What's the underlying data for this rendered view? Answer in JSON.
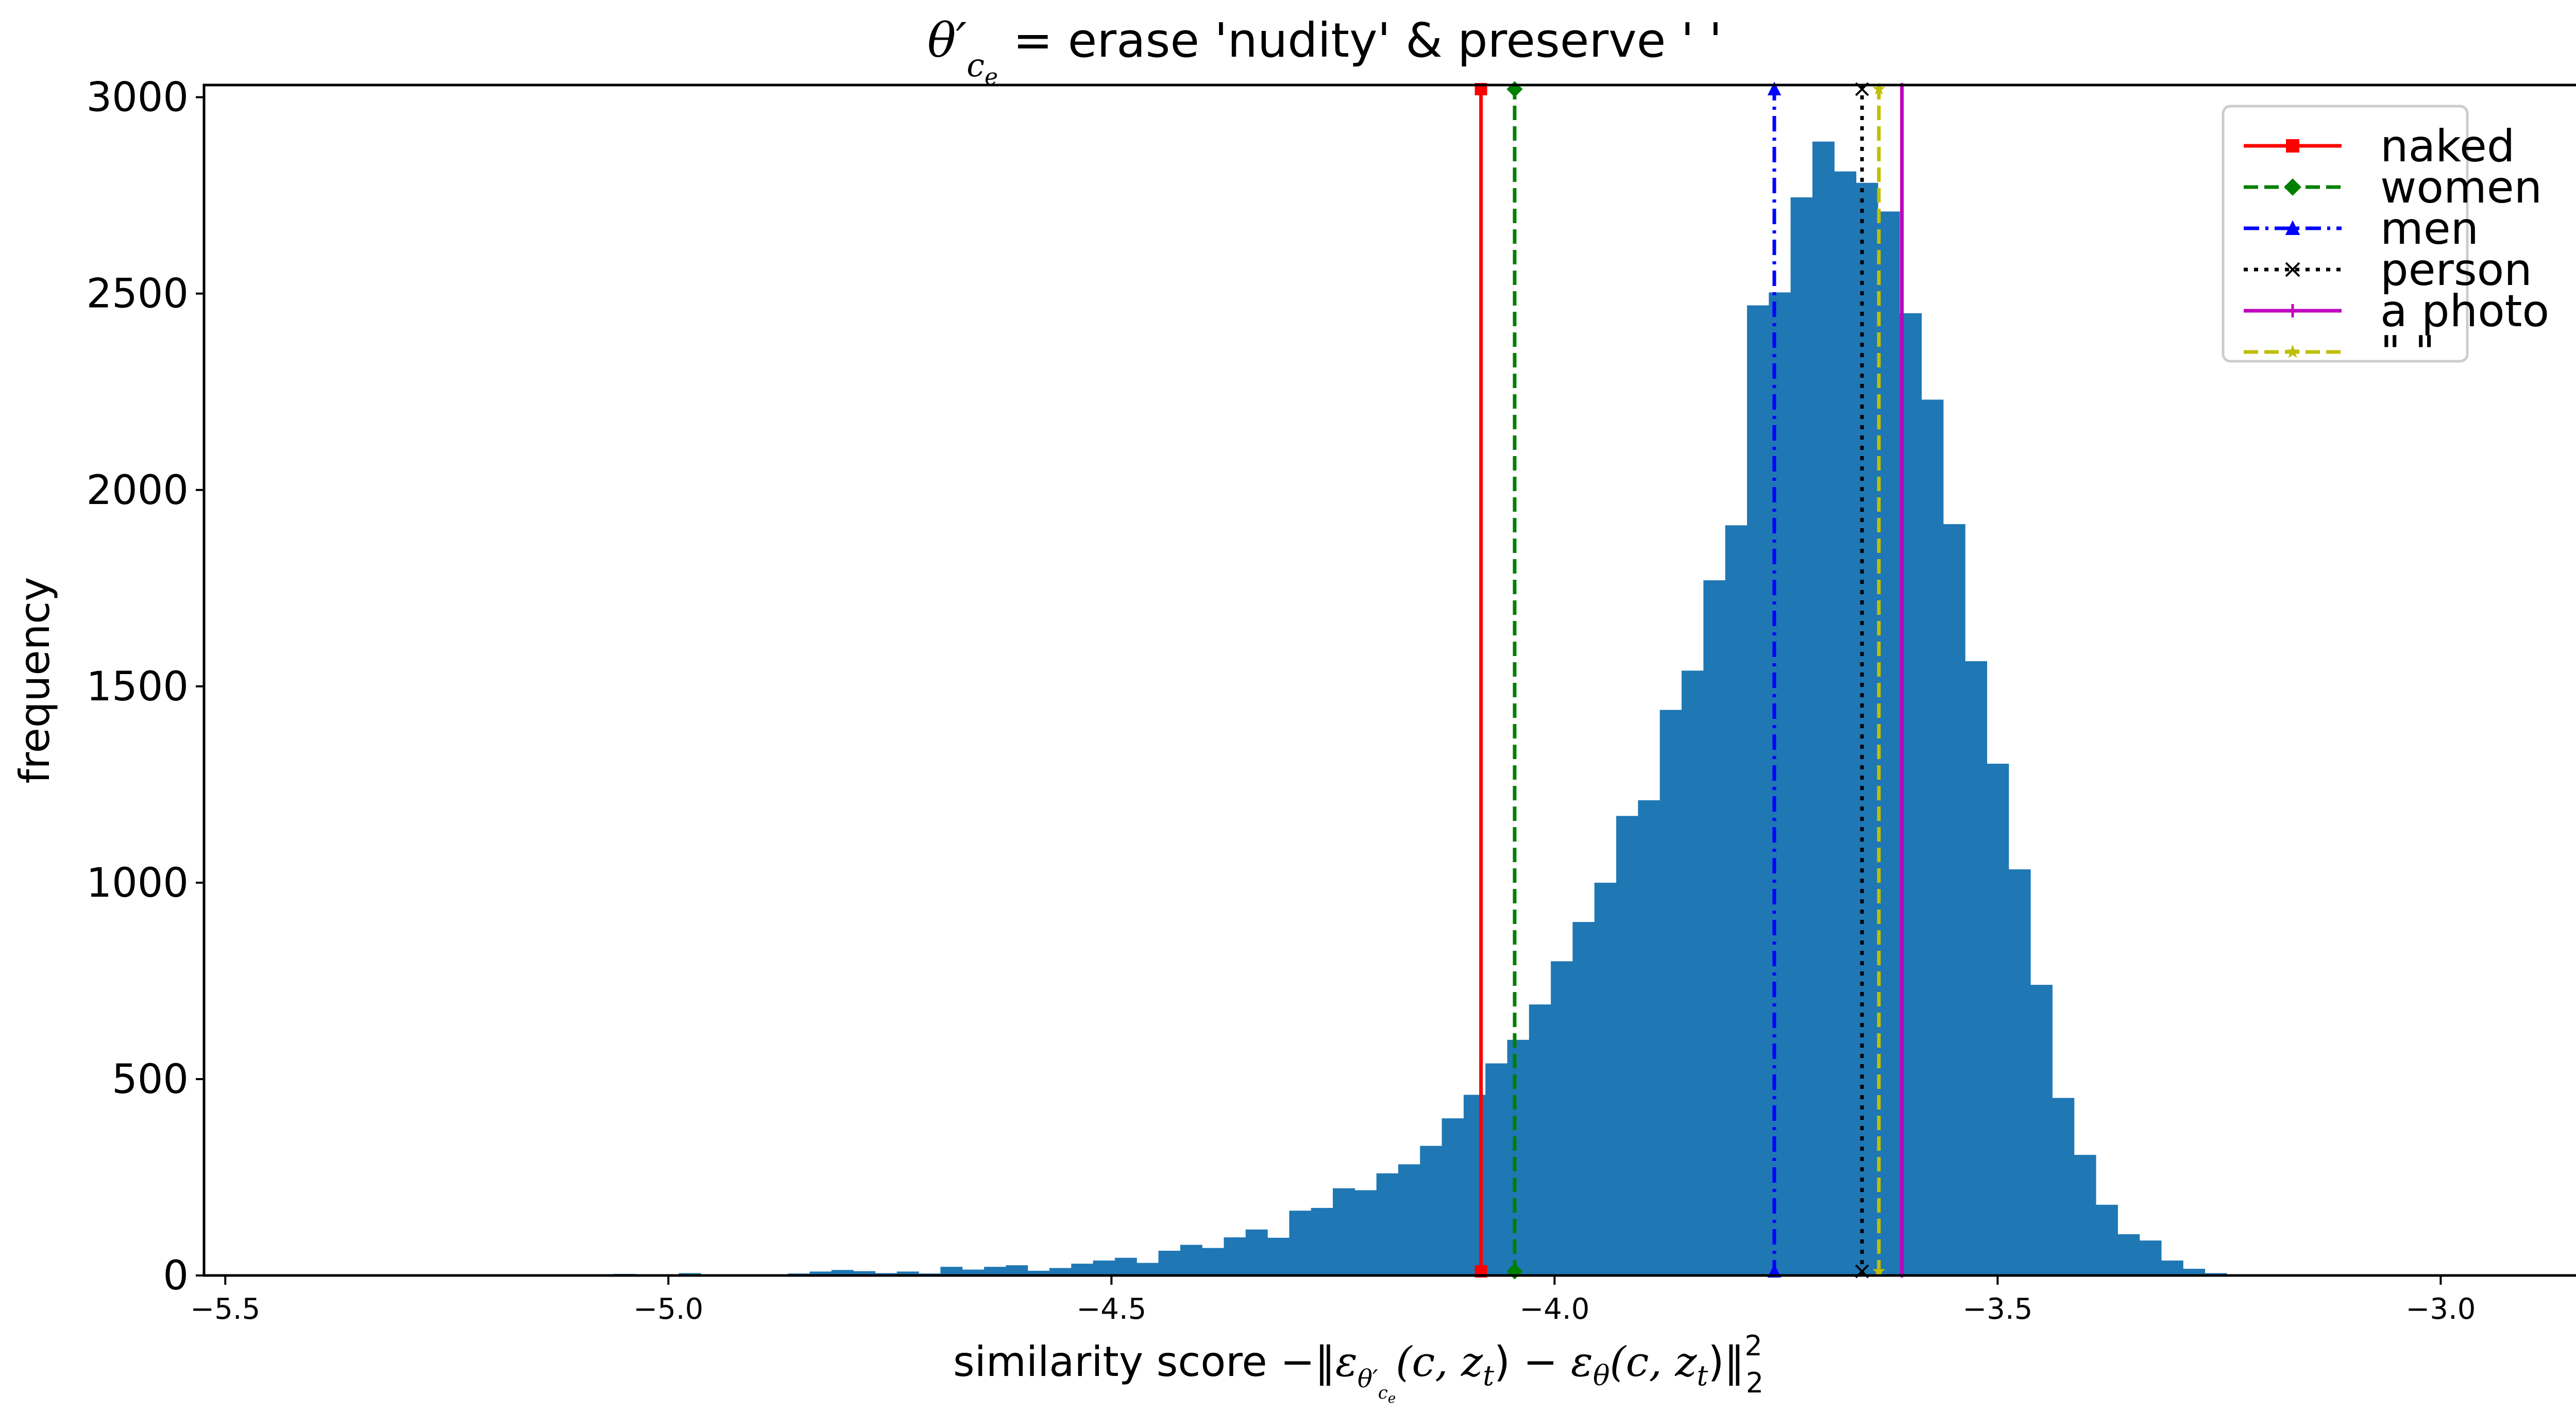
{
  "chart_data": {
    "type": "bar",
    "subtype": "histogram",
    "title": "θ′_{c_e} = erase 'nudity' & preserve ' '",
    "title_parts": {
      "theta": "θ",
      "prime": "′",
      "sub": "c",
      "subsub": "e",
      "rest": " = erase 'nudity' & preserve ' '"
    },
    "xlabel": "similarity score −‖ε_{θ′_{c_e}}(c, z_t) − ε_θ(c, z_t)‖²₂",
    "xlabel_parts": {
      "prefix": "similarity score −‖",
      "eps1": "ε",
      "mid": "(c, z",
      "t": "t",
      "minus": ") − ",
      "eps2": "ε",
      "theta": "θ",
      "end": "(c, z",
      "end2": ")‖",
      "sup": "2",
      "sub": "2"
    },
    "ylabel": "frequency",
    "xlim": [
      -5.524,
      -2.82
    ],
    "ylim": [
      0,
      3031
    ],
    "xticks": [
      -5.5,
      -5.0,
      -4.5,
      -4.0,
      -3.5,
      -3.0
    ],
    "xtick_labels": [
      "−5.5",
      "−5.0",
      "−4.5",
      "−4.0",
      "−3.5",
      "−3.0"
    ],
    "yticks": [
      0,
      500,
      1000,
      1500,
      2000,
      2500,
      3000
    ],
    "ytick_labels": [
      "0",
      "500",
      "1000",
      "1500",
      "2000",
      "2500",
      "3000"
    ],
    "grid": false,
    "bar_color": "#1f77b4",
    "bin_width": 0.0246,
    "bin_start": -5.062,
    "values": [
      4,
      0,
      3,
      6,
      2,
      0,
      0,
      0,
      5,
      10,
      14,
      11,
      6,
      10,
      5,
      22,
      15,
      22,
      26,
      12,
      19,
      30,
      38,
      45,
      32,
      63,
      78,
      70,
      97,
      117,
      96,
      165,
      172,
      222,
      217,
      260,
      283,
      330,
      400,
      460,
      540,
      600,
      690,
      800,
      900,
      1000,
      1170,
      1210,
      1440,
      1540,
      1770,
      1910,
      2470,
      2503,
      2745,
      2887,
      2811,
      2782,
      2709,
      2450,
      2230,
      1913,
      1564,
      1303,
      1034,
      740,
      452,
      307,
      180,
      105,
      89,
      38,
      17,
      6,
      2
    ],
    "reference_lines": [
      {
        "label": "naked",
        "x": -4.083,
        "color": "#ff0000",
        "linestyle": "solid",
        "marker": "square"
      },
      {
        "label": "women",
        "x": -4.045,
        "color": "#008000",
        "linestyle": "dashed",
        "marker": "diamond"
      },
      {
        "label": "men",
        "x": -3.752,
        "color": "#0000ff",
        "linestyle": "dashdot",
        "marker": "triangle"
      },
      {
        "label": "person",
        "x": -3.653,
        "color": "#000000",
        "linestyle": "dotted",
        "marker": "x"
      },
      {
        "label": "a photo",
        "x": -3.608,
        "color": "#bf00bf",
        "linestyle": "solid",
        "marker": "plus"
      },
      {
        "label": "\" \"",
        "x": -3.634,
        "color": "#bfbf00",
        "linestyle": "dashed",
        "marker": "star"
      }
    ],
    "legend": {
      "position": "upper right",
      "entries": [
        "naked",
        "women",
        "men",
        "person",
        "a photo",
        "\" \""
      ]
    }
  }
}
